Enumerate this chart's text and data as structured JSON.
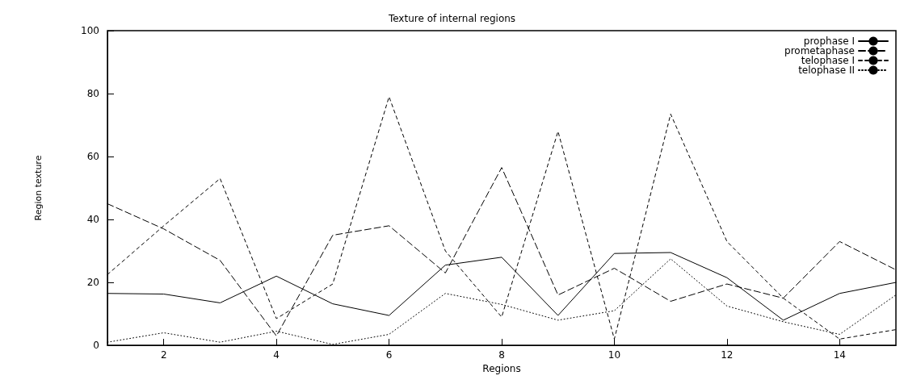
{
  "chart_data": {
    "type": "line",
    "title": "Texture of internal regions",
    "xlabel": "Regions",
    "ylabel": "Region texture",
    "x": [
      1,
      2,
      3,
      4,
      5,
      6,
      7,
      8,
      9,
      10,
      11,
      12,
      13,
      14,
      15
    ],
    "xlim": [
      1,
      15
    ],
    "xticks": [
      2,
      4,
      6,
      8,
      10,
      12,
      14
    ],
    "ylim": [
      0,
      100
    ],
    "yticks": [
      0,
      20,
      40,
      60,
      80,
      100
    ],
    "grid": false,
    "legend": "top right",
    "marker": "none",
    "series": [
      {
        "name": "prophase I",
        "color": "#000000",
        "line_style": "solid",
        "values": [
          16.5,
          16.3,
          13.5,
          22,
          13.2,
          9.5,
          25.5,
          28,
          9.5,
          29.2,
          29.5,
          21.5,
          8,
          16.5,
          20
        ]
      },
      {
        "name": "prometaphase",
        "color": "#000000",
        "line_style": "dashed",
        "values": [
          45,
          37,
          27,
          3,
          35,
          38,
          23,
          56.5,
          16,
          24.5,
          14,
          19.5,
          15,
          33,
          24
        ]
      },
      {
        "name": "telophase I",
        "color": "#000000",
        "line_style": "dashed",
        "values": [
          22.5,
          38,
          53,
          8.5,
          19.5,
          79,
          30,
          9,
          68,
          2,
          73.5,
          33,
          15,
          2,
          5
        ]
      },
      {
        "name": "telophase II",
        "color": "#000000",
        "line_style": "dotted",
        "values": [
          1,
          4,
          1,
          4.5,
          0.3,
          3.5,
          16.5,
          13,
          8,
          11,
          27.5,
          12.5,
          7.5,
          3.5,
          16
        ]
      }
    ]
  }
}
